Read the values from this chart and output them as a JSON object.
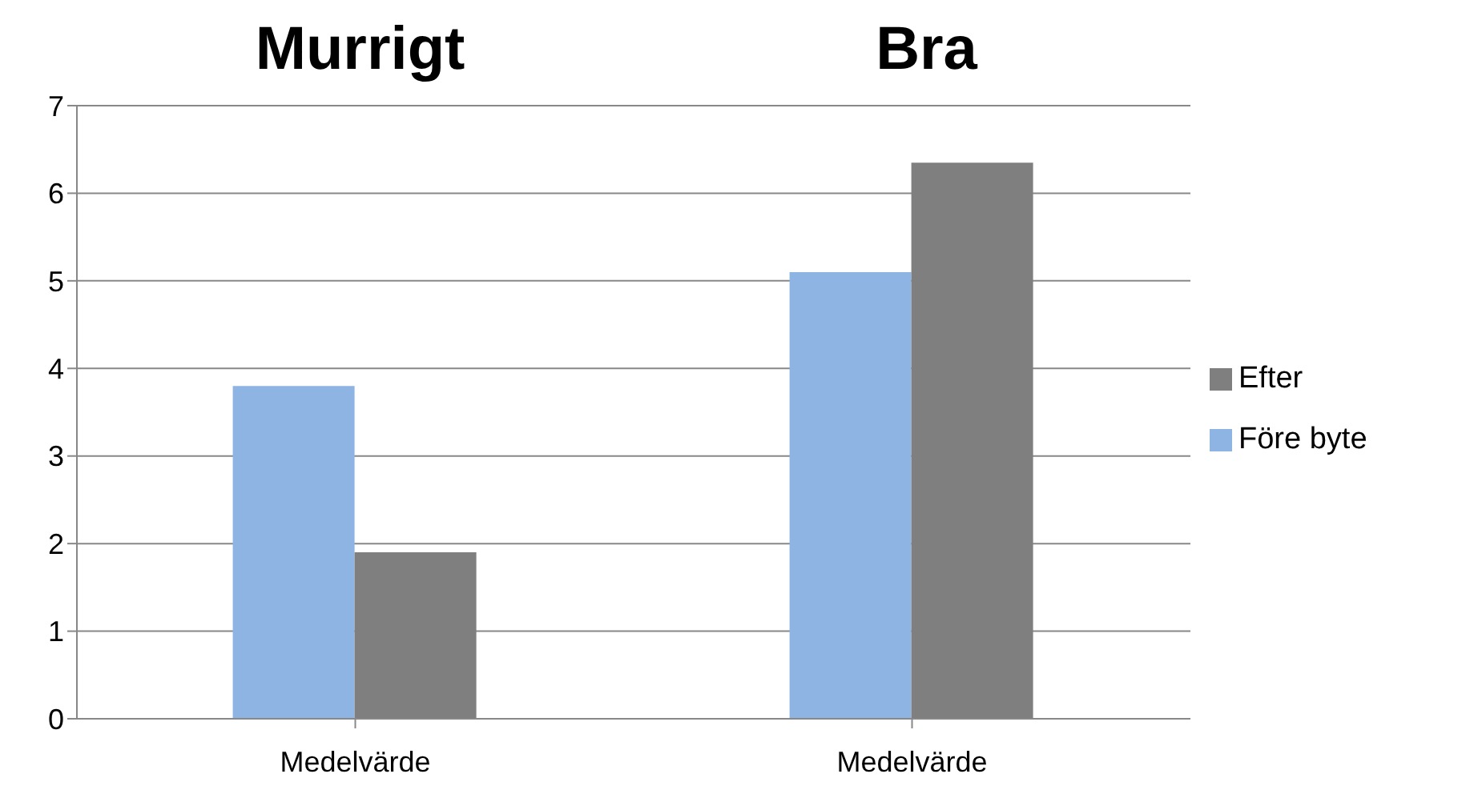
{
  "chart_data": {
    "type": "bar",
    "categories": [
      "Medelvärde",
      "Medelvärde"
    ],
    "series": [
      {
        "name": "Före byte",
        "color": "#8eb4e3",
        "values": [
          3.8,
          5.1
        ]
      },
      {
        "name": "Efter",
        "color": "#7f7f7f",
        "values": [
          1.9,
          6.35
        ]
      }
    ],
    "annotations": [
      "Murrigt",
      "Bra"
    ],
    "ylim": [
      0,
      7
    ],
    "yticks": [
      0,
      1,
      2,
      3,
      4,
      5,
      6,
      7
    ],
    "grid": "y",
    "legend": "right"
  }
}
